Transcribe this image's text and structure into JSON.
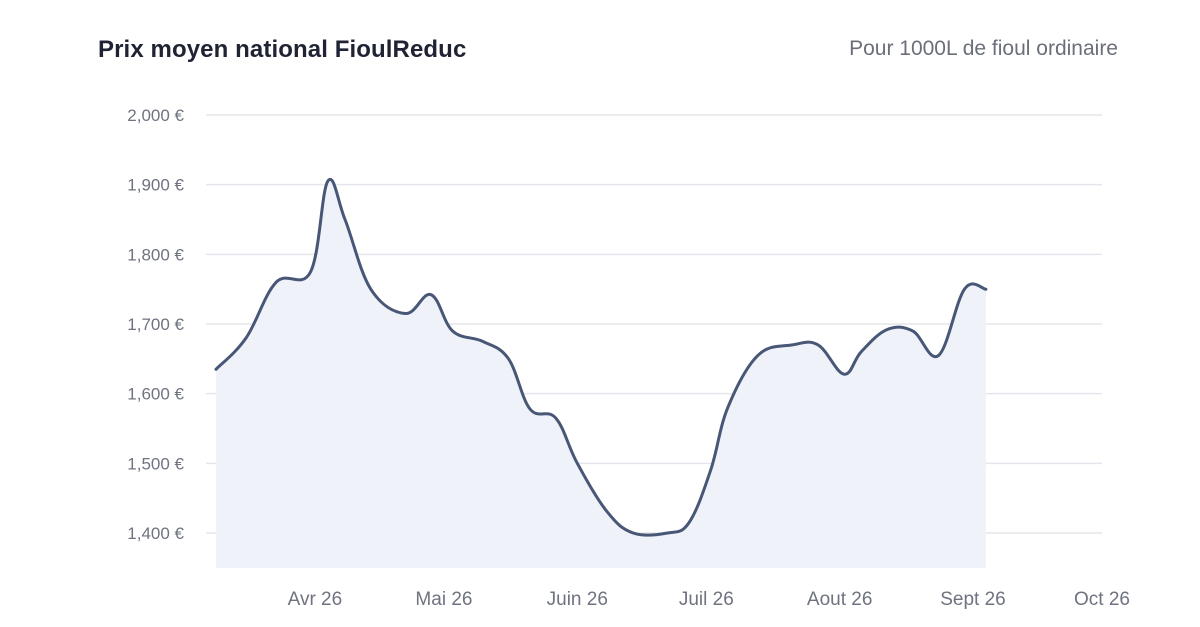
{
  "header": {
    "title": "Prix moyen national FioulReduc",
    "subtitle": "Pour 1000L de fioul ordinaire"
  },
  "colors": {
    "line": "#475775",
    "area": "#f0f2fa",
    "grid": "#e3e6ec",
    "title": "#1f2333",
    "tick": "#6f7380"
  },
  "chart_data": {
    "type": "area",
    "title": "Prix moyen national FioulReduc",
    "subtitle": "Pour 1000L de fioul ordinaire",
    "xlabel": "",
    "ylabel": "",
    "ylim": [
      1350,
      2000
    ],
    "y_ticks": [
      1400,
      1500,
      1600,
      1700,
      1800,
      1900,
      2000
    ],
    "y_tick_labels": [
      "1,400 €",
      "1,500 €",
      "1,600 €",
      "1,700 €",
      "1,800 €",
      "1,900 €",
      "2,000 €"
    ],
    "x_ticks": [
      "2026-04-01",
      "2026-05-01",
      "2026-06-01",
      "2026-07-01",
      "2026-08-01",
      "2026-09-01",
      "2026-10-01"
    ],
    "x_tick_labels": [
      "Avr 26",
      "Mai 26",
      "Juin 26",
      "Juil 26",
      "Aout 26",
      "Sept 26",
      "Oct 26"
    ],
    "xlim": [
      "2026-03-09",
      "2026-10-01"
    ],
    "grid": true,
    "legend": "none",
    "series": [
      {
        "x": [
          "2026-03-09",
          "2026-03-16",
          "2026-03-23",
          "2026-03-31",
          "2026-04-04",
          "2026-04-08",
          "2026-04-14",
          "2026-04-22",
          "2026-04-28",
          "2026-05-03",
          "2026-05-10",
          "2026-05-16",
          "2026-05-21",
          "2026-05-27",
          "2026-06-01",
          "2026-06-08",
          "2026-06-14",
          "2026-06-22",
          "2026-06-27",
          "2026-07-02",
          "2026-07-06",
          "2026-07-13",
          "2026-07-21",
          "2026-07-27",
          "2026-08-02",
          "2026-08-06",
          "2026-08-12",
          "2026-08-18",
          "2026-08-24",
          "2026-08-30",
          "2026-09-04"
        ],
        "y": [
          1635,
          1680,
          1760,
          1775,
          1905,
          1850,
          1750,
          1715,
          1742,
          1690,
          1675,
          1650,
          1578,
          1565,
          1500,
          1430,
          1400,
          1400,
          1415,
          1490,
          1580,
          1655,
          1670,
          1670,
          1628,
          1660,
          1692,
          1690,
          1655,
          1750,
          1750
        ]
      }
    ]
  }
}
